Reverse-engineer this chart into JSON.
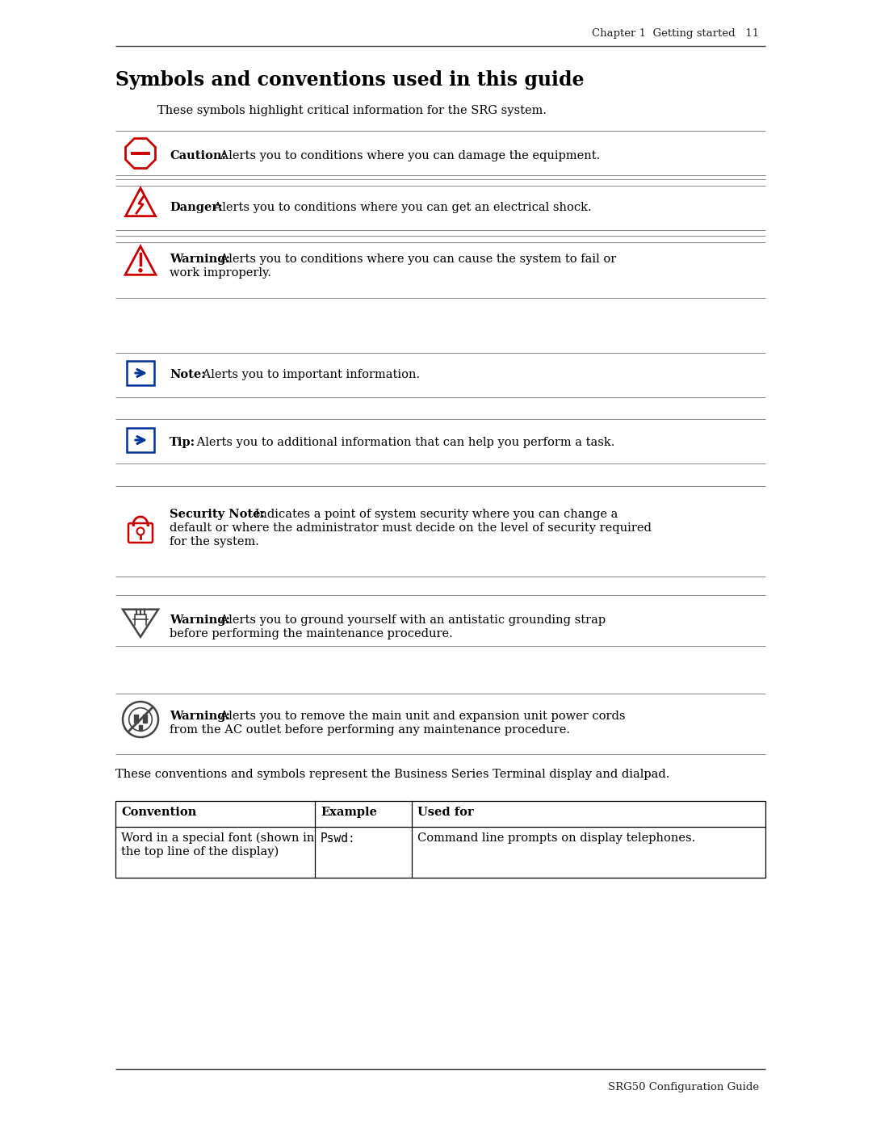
{
  "page_title": "Symbols and conventions used in this guide",
  "header_text": "Chapter 1  Getting started   11",
  "footer_text": "SRG50 Configuration Guide",
  "intro_text": "These symbols highlight critical information for the SRG system.",
  "symbols": [
    {
      "type": "caution",
      "bold_text": "Caution:",
      "rest_text": " Alerts you to conditions where you can damage the equipment.",
      "color": "#cc0000",
      "lines": 1
    },
    {
      "type": "danger",
      "bold_text": "Danger:",
      "rest_text": " Alerts you to conditions where you can get an electrical shock.",
      "color": "#cc0000",
      "lines": 1
    },
    {
      "type": "warning_triangle",
      "bold_text": "Warning:",
      "rest_text": " Alerts you to conditions where you can cause the system to fail or\nwork improperly.",
      "color": "#cc0000",
      "lines": 2
    },
    {
      "type": "note",
      "bold_text": "Note:",
      "rest_text": " Alerts you to important information.",
      "color": "#003399",
      "lines": 1
    },
    {
      "type": "tip",
      "bold_text": "Tip:",
      "rest_text": " Alerts you to additional information that can help you perform a task.",
      "color": "#003399",
      "lines": 1
    },
    {
      "type": "security",
      "bold_text": "Security Note:",
      "rest_text": " Indicates a point of system security where you can change a\ndefault or where the administrator must decide on the level of security required\nfor the system.",
      "color": "#cc0000",
      "lines": 3
    },
    {
      "type": "grounding",
      "bold_text": "Warning:",
      "rest_text": " Alerts you to ground yourself with an antistatic grounding strap\nbefore performing the maintenance procedure.",
      "color": "#333333",
      "lines": 2
    },
    {
      "type": "power",
      "bold_text": "Warning:",
      "rest_text": " Alerts you to remove the main unit and expansion unit power cords\nfrom the AC outlet before performing any maintenance procedure.",
      "color": "#333333",
      "lines": 2
    }
  ],
  "table_intro": "These conventions and symbols represent the Business Series Terminal display and dialpad.",
  "table_headers": [
    "Convention",
    "Example",
    "Used for"
  ],
  "table_row": [
    "Word in a special font (shown in\nthe top line of the display)",
    "Pswd:",
    "Command line prompts on display telephones."
  ],
  "bg_color": "#ffffff",
  "text_color": "#000000",
  "line_color": "#888888",
  "icon_red": "#cc0000",
  "icon_blue": "#003399",
  "icon_gray": "#444444"
}
